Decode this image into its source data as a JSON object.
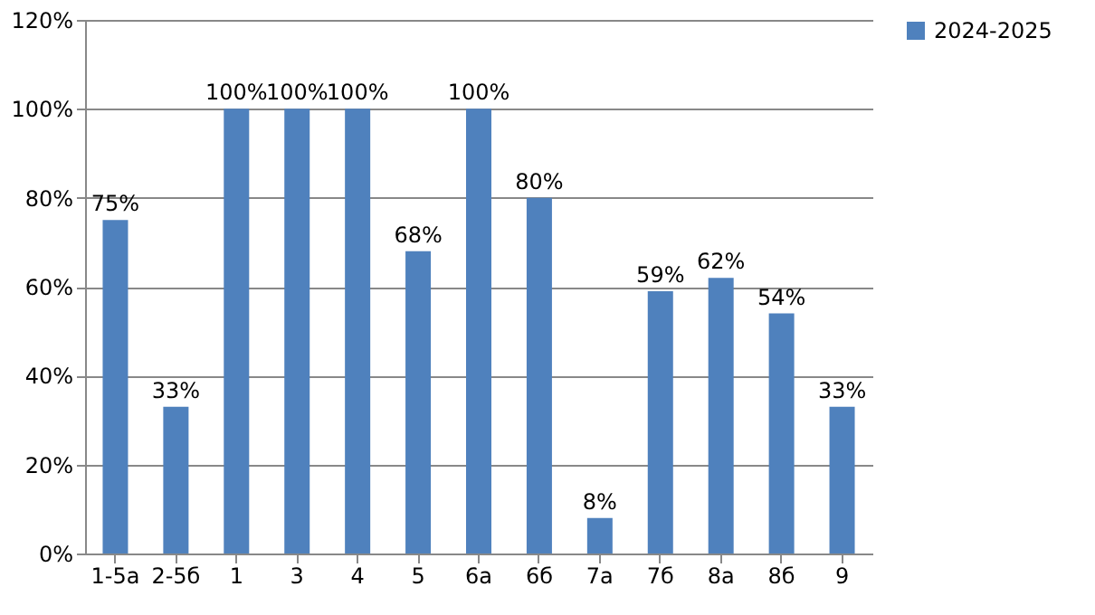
{
  "chart_data": {
    "type": "bar",
    "categories": [
      "1-5а",
      "2-5б",
      "1",
      "3",
      "4",
      "5",
      "6а",
      "6б",
      "7а",
      "7б",
      "8а",
      "8б",
      "9"
    ],
    "series": [
      {
        "name": "2024-2025",
        "color": "#4f81bd",
        "values": [
          75,
          33,
          100,
          100,
          100,
          68,
          100,
          80,
          8,
          59,
          62,
          54,
          33
        ],
        "value_labels": [
          "75%",
          "33%",
          "100%",
          "100%",
          "100%",
          "68%",
          "100%",
          "80%",
          "8%",
          "59%",
          "62%",
          "54%",
          "33%"
        ]
      }
    ],
    "ylim": [
      0,
      120
    ],
    "yticks": [
      {
        "value": 0,
        "label": "0%"
      },
      {
        "value": 20,
        "label": "20%"
      },
      {
        "value": 40,
        "label": "40%"
      },
      {
        "value": 60,
        "label": "60%"
      },
      {
        "value": 80,
        "label": "80%"
      },
      {
        "value": 100,
        "label": "100%"
      },
      {
        "value": 120,
        "label": "120%"
      }
    ],
    "grid": "y",
    "legend": "right"
  }
}
